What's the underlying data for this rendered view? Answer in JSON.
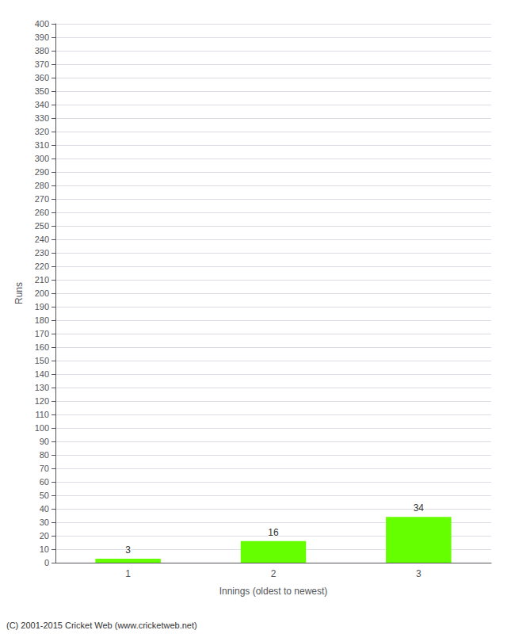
{
  "chart_data": {
    "type": "bar",
    "categories": [
      "1",
      "2",
      "3"
    ],
    "values": [
      3,
      16,
      34
    ],
    "color": "#66ff00",
    "xlabel": "Innings (oldest to newest)",
    "ylabel": "Runs",
    "ylim": [
      0,
      400
    ],
    "yticks": [
      0,
      10,
      20,
      30,
      40,
      50,
      60,
      70,
      80,
      90,
      100,
      110,
      120,
      130,
      140,
      150,
      160,
      170,
      180,
      190,
      200,
      210,
      220,
      230,
      240,
      250,
      260,
      270,
      280,
      290,
      300,
      310,
      320,
      330,
      340,
      350,
      360,
      370,
      380,
      390,
      400
    ],
    "grid": true,
    "data_labels": true,
    "annotations": [
      "(C) 2001-2015 Cricket Web (www.cricketweb.net)"
    ]
  }
}
